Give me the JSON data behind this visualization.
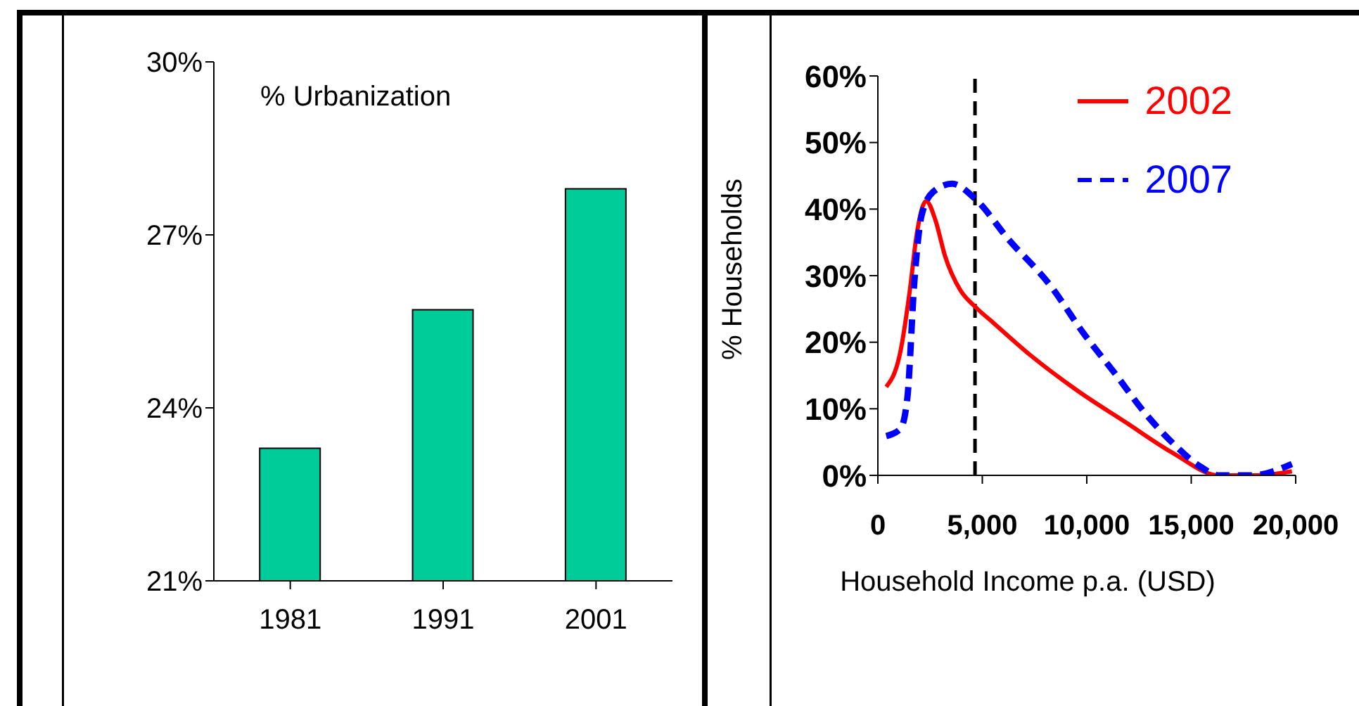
{
  "chart_data": [
    {
      "type": "bar",
      "title": "% Urbanization",
      "categories": [
        "1981",
        "1991",
        "2001"
      ],
      "values": [
        23.3,
        25.7,
        27.8
      ],
      "color": "#00cc99",
      "ylim": [
        21,
        30
      ],
      "yticks": [
        {
          "value": 21,
          "label": "21%"
        },
        {
          "value": 24,
          "label": "24%"
        },
        {
          "value": 27,
          "label": "27%"
        },
        {
          "value": 30,
          "label": "30%"
        }
      ],
      "grid": false
    },
    {
      "type": "line",
      "xlabel": "Household Income p.a. (USD)",
      "ylabel": "% Households",
      "legend": "top right",
      "marker": "none",
      "grid": false,
      "xlim": [
        0,
        20000
      ],
      "xticks": [
        0,
        {
          "value": 5000,
          "label": "5,000"
        },
        {
          "value": 10000,
          "label": "10,000"
        },
        {
          "value": 15000,
          "label": "15,000"
        },
        {
          "value": 20000,
          "label": "20,000"
        }
      ],
      "ylim": [
        0,
        60
      ],
      "yticks": [
        {
          "value": 0,
          "label": "0%"
        },
        {
          "value": 10,
          "label": "10%"
        },
        {
          "value": 20,
          "label": "20%"
        },
        {
          "value": 30,
          "label": "30%"
        },
        {
          "value": 40,
          "label": "40%"
        },
        {
          "value": 50,
          "label": "50%"
        },
        {
          "value": 60,
          "label": "60%"
        }
      ],
      "ref_lines": [
        {
          "axis": "x",
          "value": 4650,
          "color": "#000000",
          "line_style": "dashed"
        }
      ],
      "series": [
        {
          "name": "2002",
          "color": "#ff0000",
          "line_style": "solid",
          "x": [
            400,
            1080,
            1530,
            1860,
            2310,
            2760,
            3210,
            3950,
            4670,
            5570,
            7360,
            9610,
            11850,
            14100,
            16340,
            18140,
            19820
          ],
          "values": [
            13.3,
            18.6,
            27.8,
            36.2,
            41.2,
            38.3,
            33,
            27.8,
            25.3,
            22.8,
            17.9,
            12.6,
            8,
            3.4,
            0,
            0,
            0.6
          ]
        },
        {
          "name": "2007",
          "color": "#0000ff",
          "line_style": "dashed",
          "x": [
            400,
            1080,
            1410,
            1750,
            2090,
            2650,
            3550,
            4670,
            6240,
            8260,
            9830,
            11400,
            12750,
            14100,
            15440,
            16340,
            17890,
            19820
          ],
          "values": [
            5.9,
            7,
            11.6,
            29.2,
            39,
            42.6,
            43.8,
            41.5,
            35.5,
            28.5,
            21.4,
            15.1,
            9.5,
            4.9,
            1.3,
            0,
            0,
            1.7
          ]
        }
      ]
    }
  ]
}
